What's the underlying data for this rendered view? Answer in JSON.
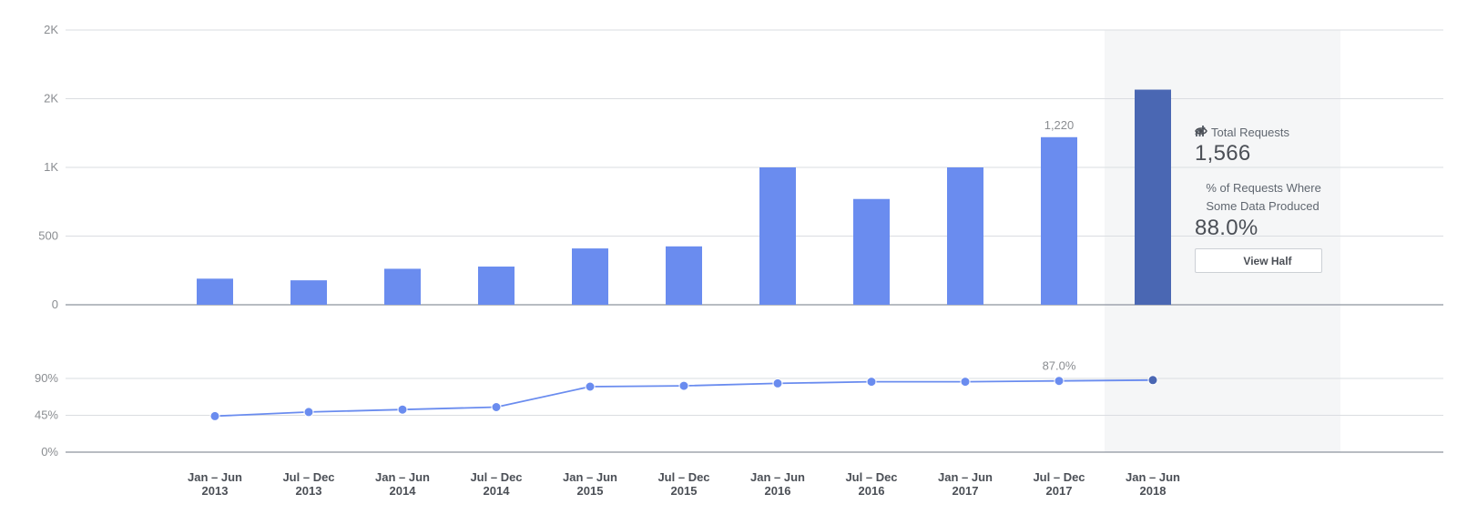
{
  "chart_data": [
    {
      "type": "bar",
      "categories": [
        [
          "Jan – Jun",
          "2013"
        ],
        [
          "Jul – Dec",
          "2013"
        ],
        [
          "Jan – Jun",
          "2014"
        ],
        [
          "Jul – Dec",
          "2014"
        ],
        [
          "Jan – Jun",
          "2015"
        ],
        [
          "Jul – Dec",
          "2015"
        ],
        [
          "Jan – Jun",
          "2016"
        ],
        [
          "Jul – Dec",
          "2016"
        ],
        [
          "Jan – Jun",
          "2017"
        ],
        [
          "Jul – Dec",
          "2017"
        ],
        [
          "Jan – Jun",
          "2018"
        ]
      ],
      "values": [
        190,
        178,
        262,
        278,
        410,
        425,
        1000,
        770,
        1000,
        1220,
        1566
      ],
      "highlight_index": 10,
      "yticks": [
        {
          "value": 0,
          "label": "0"
        },
        {
          "value": 500,
          "label": "500"
        },
        {
          "value": 1000,
          "label": "1K"
        },
        {
          "value": 1500,
          "label": "2K"
        },
        {
          "value": 2000,
          "label": "2K"
        }
      ],
      "ylim": [
        0,
        2000
      ],
      "data_labels": [
        {
          "index": 9,
          "text": "1,220"
        }
      ],
      "grid": true
    },
    {
      "type": "line",
      "categories_ref": "shared",
      "values": [
        44,
        49,
        52,
        55,
        80,
        81,
        84,
        86,
        86,
        87,
        88
      ],
      "highlight_index": 10,
      "yticks": [
        {
          "value": 0,
          "label": "0%"
        },
        {
          "value": 45,
          "label": "45%"
        },
        {
          "value": 90,
          "label": "90%"
        }
      ],
      "ylim": [
        0,
        90
      ],
      "data_labels": [
        {
          "index": 9,
          "text": "87.0%"
        }
      ],
      "grid": true
    }
  ],
  "tooltip": {
    "total_label": "Total Requests",
    "total_value": "1,566",
    "pct_label": "% of Requests Where Some Data Produced",
    "pct_value": "88.0%",
    "button_label": "View Half",
    "total_icon": "bar-chart-icon",
    "pct_icon": "trend-line-icon",
    "button_icon": "eye-icon"
  },
  "colors": {
    "bar": "#6a8cef",
    "bar_highlight": "#4a67b3",
    "line": "#6a8cef",
    "point_highlight": "#4a67b3",
    "highlight_band": "#f5f6f7",
    "grid": "#dadde1",
    "axis": "#8d949e"
  }
}
